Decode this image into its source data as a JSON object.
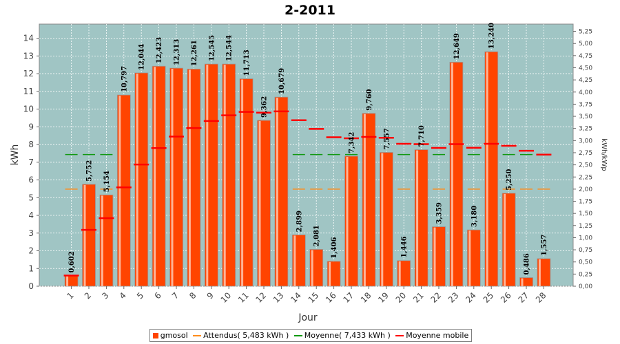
{
  "chart_data": {
    "type": "bar",
    "title": "2-2011",
    "xlabel": "Jour",
    "ylabel": "kWh",
    "y2label": "kWh/kWp",
    "ylim": [
      0,
      14.8
    ],
    "y2lim": [
      0,
      5.4
    ],
    "yticks": [
      "0",
      "1",
      "2",
      "3",
      "4",
      "5",
      "6",
      "7",
      "8",
      "9",
      "10",
      "11",
      "12",
      "13",
      "14"
    ],
    "y2ticks": [
      "0,00",
      "0,25",
      "0,50",
      "0,75",
      "1,00",
      "1,25",
      "1,50",
      "1,75",
      "2,00",
      "2,25",
      "2,50",
      "2,75",
      "3,00",
      "3,25",
      "3,50",
      "3,75",
      "4,00",
      "4,25",
      "4,50",
      "4,75",
      "5,00",
      "5,25"
    ],
    "categories": [
      "1",
      "2",
      "3",
      "4",
      "5",
      "6",
      "7",
      "8",
      "9",
      "10",
      "11",
      "12",
      "13",
      "14",
      "15",
      "16",
      "17",
      "18",
      "19",
      "20",
      "21",
      "22",
      "23",
      "24",
      "25",
      "26",
      "27",
      "28"
    ],
    "grid": true,
    "legend_position": "bottom",
    "series": [
      {
        "name": "gmosol",
        "kind": "bar",
        "color": "#ff4400",
        "values": [
          0.602,
          5.752,
          5.154,
          10.797,
          12.044,
          12.423,
          12.313,
          12.261,
          12.545,
          12.544,
          11.713,
          9.362,
          10.679,
          2.899,
          2.081,
          1.406,
          7.342,
          9.76,
          7.557,
          1.446,
          7.71,
          3.359,
          12.649,
          3.18,
          13.24,
          5.25,
          0.486,
          1.557
        ],
        "labels": [
          "0,602",
          "5,752",
          "5,154",
          "10,797",
          "12,044",
          "12,423",
          "12,313",
          "12,261",
          "12,545",
          "12,544",
          "11,713",
          "9,362",
          "10,679",
          "2,899",
          "2,081",
          "1,406",
          "7,342",
          "9,760",
          "7,557",
          "1,446",
          "7,710",
          "3,359",
          "12,649",
          "3,180",
          "13,240",
          "5,250",
          "0,486",
          "1,557"
        ]
      },
      {
        "name": "Attendus( 5,483 kWh )",
        "kind": "dash",
        "color": "#ff8c1a",
        "value": 5.483
      },
      {
        "name": "Moyenne( 7,433 kWh )",
        "kind": "dash",
        "color": "#119911",
        "value": 7.433
      },
      {
        "name": "Moyenne mobile",
        "kind": "step",
        "color": "#ff0000",
        "values": [
          0.602,
          3.18,
          3.84,
          5.58,
          6.87,
          7.8,
          8.45,
          8.93,
          9.33,
          9.65,
          9.84,
          9.8,
          9.87,
          9.37,
          8.88,
          8.41,
          8.35,
          8.43,
          8.38,
          8.04,
          8.02,
          7.81,
          8.02,
          7.82,
          8.04,
          7.93,
          7.65,
          7.43
        ]
      }
    ]
  }
}
